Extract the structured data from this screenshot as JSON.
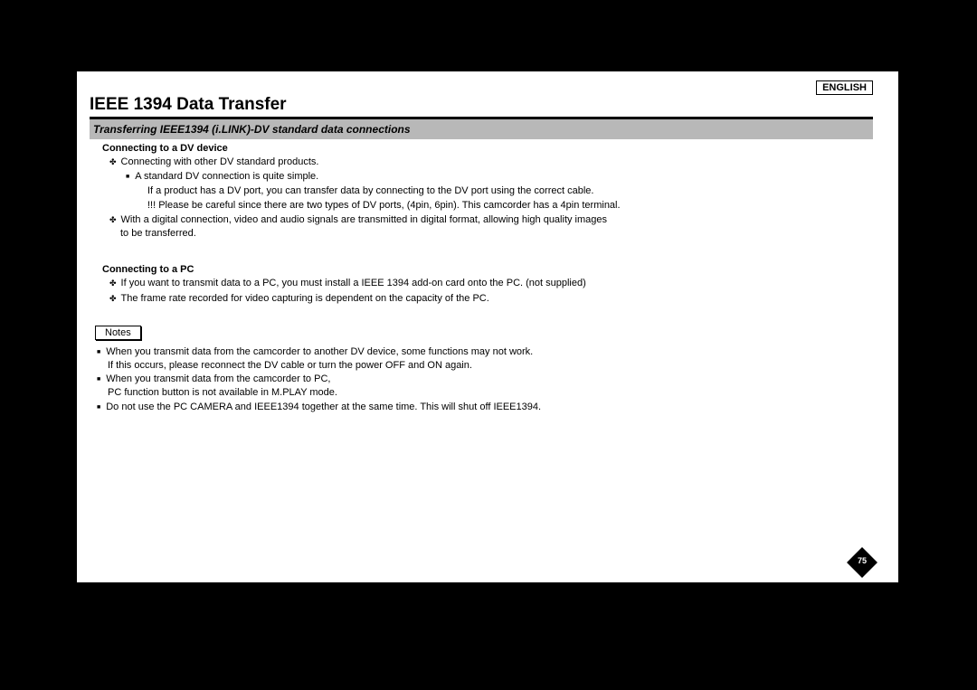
{
  "language_label": "ENGLISH",
  "title": "IEEE 1394 Data Transfer",
  "section_bar": "Transferring IEEE1394 (i.LINK)-DV standard data connections",
  "dv": {
    "heading": "Connecting to a DV device",
    "b1": "Connecting with other DV standard products.",
    "sq1": "A standard DV connection is quite simple.",
    "line_deep": "If a product has a DV port, you can transfer data by connecting to the DV port using the correct cable.",
    "line_excl": "!!!   Please be careful since there are two types of DV ports, (4pin, 6pin). This camcorder has a 4pin terminal.",
    "b2a": "With a digital connection, video and audio signals are transmitted in digital format, allowing high quality images",
    "b2b": "to be transferred."
  },
  "pc": {
    "heading": "Connecting to a PC",
    "b1": "If you want to transmit data to a PC, you must install a IEEE 1394 add-on card onto the PC. (not supplied)",
    "b2": "The frame rate recorded for video capturing is dependent on the capacity of the PC."
  },
  "notes_label": "Notes",
  "notes": {
    "n1": "When you transmit data from the camcorder to another DV device, some functions may not work.",
    "n1b": "If this occurs, please reconnect the DV cable or turn the power OFF and ON again.",
    "n2": "When you transmit data from the camcorder to PC,",
    "n2b": "PC function button is not available in M.PLAY mode.",
    "n3": "Do not use the PC CAMERA and IEEE1394 together at the same time. This will shut off IEEE1394."
  },
  "page_number": "75"
}
